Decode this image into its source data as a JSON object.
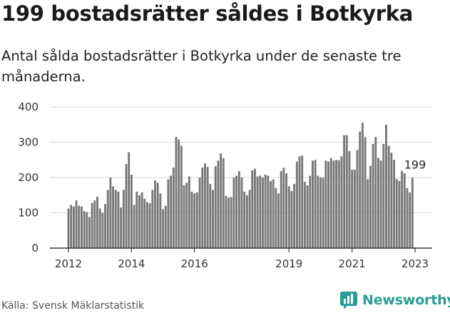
{
  "header": {
    "title": "199 bostadsrätter såldes i Botkyrka",
    "subtitle": "Antal sålda bostadsrätter i Botkyrka under de senaste tre månaderna."
  },
  "footer": {
    "source": "Källa: Svensk Mäklarstatistik",
    "brand": "Newsworthy",
    "brand_icon": "chart-bubble-logo-icon"
  },
  "colors": {
    "bar": "#777777",
    "highlight": "#2b9c93",
    "grid": "#d9d9d9",
    "axis": "#333333",
    "text": "#333333"
  },
  "chart_data": {
    "type": "bar",
    "title": "",
    "xlabel": "",
    "ylabel": "",
    "ylim": [
      0,
      400
    ],
    "yticks": [
      "0",
      "100",
      "200",
      "300",
      "400"
    ],
    "xticks": [
      "2012",
      "2014",
      "2016",
      "2019",
      "2021",
      "2023"
    ],
    "xrange": [
      "2012-01",
      "2023-01"
    ],
    "grid": true,
    "annotation": {
      "label": "199",
      "month": "2023-01",
      "value": 199
    },
    "series": [
      {
        "start": "2012-01",
        "values": [
          112,
          122,
          118,
          135,
          120,
          118,
          105,
          102,
          88,
          128,
          135,
          146,
          112,
          100,
          125,
          165,
          200,
          175,
          165,
          160,
          115,
          165,
          238,
          272,
          208,
          122,
          160,
          150,
          158,
          140,
          130,
          127,
          165,
          192,
          185,
          155,
          110,
          120,
          195,
          205,
          228,
          315,
          308,
          290,
          178,
          185,
          203,
          160,
          155,
          158,
          200,
          228,
          240,
          230,
          182,
          165,
          232,
          248,
          268,
          255,
          148,
          143,
          145,
          200,
          205,
          218,
          200,
          160,
          150,
          165,
          220,
          225,
          203,
          205,
          200,
          208,
          205,
          190,
          195,
          170,
          155,
          218,
          228,
          212,
          175,
          162,
          182,
          245,
          260,
          262,
          188,
          178,
          205,
          248,
          250,
          205,
          200,
          200,
          248,
          245,
          255,
          248,
          250,
          249,
          260,
          320,
          320,
          275,
          222,
          222,
          278,
          330,
          355,
          315,
          195,
          233,
          295,
          315,
          256,
          248,
          295,
          350,
          290,
          270,
          250,
          196,
          190,
          219,
          212,
          170,
          158,
          199
        ]
      }
    ]
  }
}
